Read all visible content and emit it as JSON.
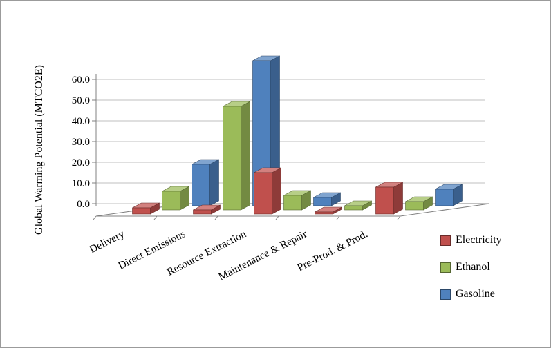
{
  "frame": {
    "background": "#ffffff",
    "border_color": "#9b9b9b",
    "gridline_color": "#bfbfbf",
    "axis_color": "#808080"
  },
  "chart_data": {
    "type": "bar",
    "subtype": "3d-column",
    "title": "",
    "xlabel": "",
    "ylabel": "Global Warming Potential (MTCO2E)",
    "ylim": [
      0,
      60
    ],
    "ytick_step": 10,
    "ytick_labels": [
      "0.0",
      "10.0",
      "20.0",
      "30.0",
      "40.0",
      "50.0",
      "60.0"
    ],
    "grid": true,
    "legend_position": "right",
    "categories": [
      "Delivery",
      "Direct Emissions",
      "Resource Extraction",
      "Maintenance & Repair",
      "Pre-Prod. & Prod."
    ],
    "series": [
      {
        "name": "Electricity",
        "color": "#C0504D",
        "values": [
          3,
          2,
          20,
          1,
          13
        ]
      },
      {
        "name": "Ethanol",
        "color": "#9BBB59",
        "values": [
          9,
          50,
          7,
          2,
          4
        ]
      },
      {
        "name": "Gasoline",
        "color": "#4F81BD",
        "values": [
          20,
          70,
          4,
          0,
          8
        ]
      }
    ]
  }
}
